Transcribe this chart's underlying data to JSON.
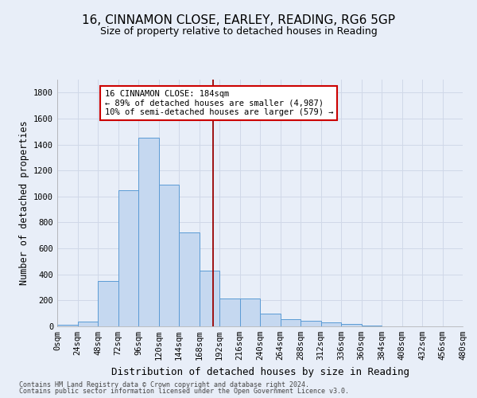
{
  "title": "16, CINNAMON CLOSE, EARLEY, READING, RG6 5GP",
  "subtitle": "Size of property relative to detached houses in Reading",
  "xlabel": "Distribution of detached houses by size in Reading",
  "ylabel": "Number of detached properties",
  "footer_line1": "Contains HM Land Registry data © Crown copyright and database right 2024.",
  "footer_line2": "Contains public sector information licensed under the Open Government Licence v3.0.",
  "bin_edges": [
    0,
    24,
    48,
    72,
    96,
    120,
    144,
    168,
    192,
    216,
    240,
    264,
    288,
    312,
    336,
    360,
    384,
    408,
    432,
    456,
    480
  ],
  "bar_heights": [
    10,
    35,
    350,
    1050,
    1450,
    1090,
    725,
    430,
    215,
    215,
    100,
    55,
    45,
    30,
    20,
    5,
    2,
    2,
    1,
    1
  ],
  "bar_color": "#c5d8f0",
  "bar_edge_color": "#5b9bd5",
  "property_size": 184,
  "annotation_line1": "16 CINNAMON CLOSE: 184sqm",
  "annotation_line2": "← 89% of detached houses are smaller (4,987)",
  "annotation_line3": "10% of semi-detached houses are larger (579) →",
  "vline_color": "#990000",
  "annotation_box_facecolor": "#ffffff",
  "annotation_box_edgecolor": "#cc0000",
  "ylim": [
    0,
    1900
  ],
  "yticks": [
    0,
    200,
    400,
    600,
    800,
    1000,
    1200,
    1400,
    1600,
    1800
  ],
  "background_color": "#e8eef8",
  "grid_color": "#d0d8e8",
  "title_fontsize": 11,
  "subtitle_fontsize": 9,
  "xlabel_fontsize": 9,
  "ylabel_fontsize": 8.5,
  "tick_fontsize": 7.5,
  "annotation_fontsize": 7.5,
  "footer_fontsize": 6
}
